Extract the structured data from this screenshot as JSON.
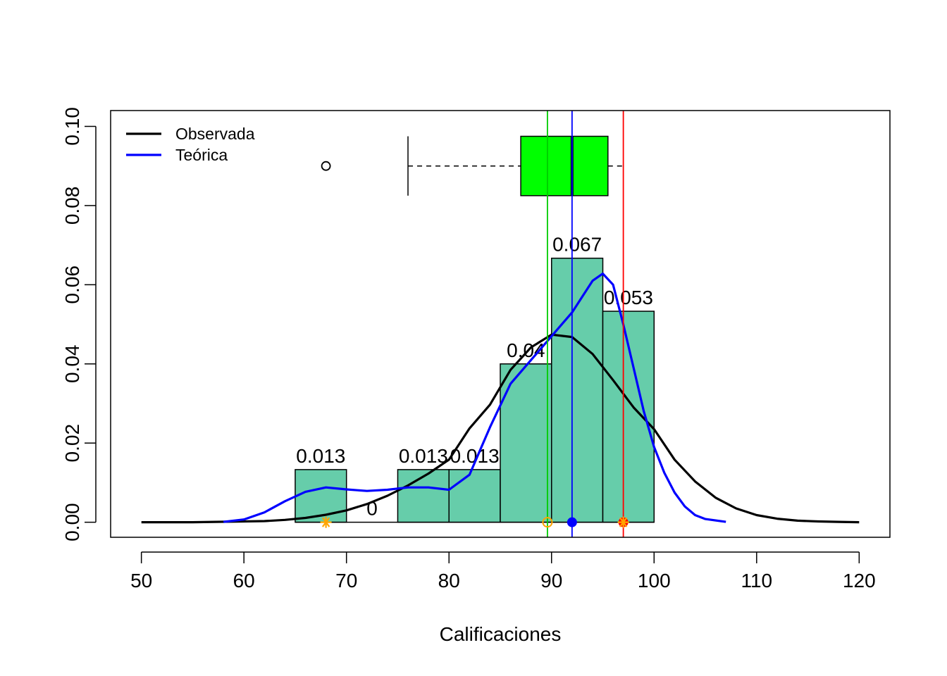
{
  "chart_data": {
    "type": "bar",
    "xlabel": "Calificaciones",
    "ylabel": "",
    "title": "",
    "xlim": [
      47,
      123
    ],
    "ylim": [
      -0.0038,
      0.104
    ],
    "x_ticks": [
      "50",
      "60",
      "70",
      "80",
      "90",
      "100",
      "110",
      "120"
    ],
    "y_ticks": [
      "0.00",
      "0.02",
      "0.04",
      "0.06",
      "0.08",
      "0.10"
    ],
    "histogram": {
      "bins": [
        {
          "from": 65,
          "to": 70,
          "density": 0.0133,
          "label": "0.013"
        },
        {
          "from": 70,
          "to": 75,
          "density": 0.0,
          "label": "0"
        },
        {
          "from": 75,
          "to": 80,
          "density": 0.0133,
          "label": "0.013"
        },
        {
          "from": 80,
          "to": 85,
          "density": 0.0133,
          "label": "0.013"
        },
        {
          "from": 85,
          "to": 90,
          "density": 0.04,
          "label": "0.04"
        },
        {
          "from": 90,
          "to": 95,
          "density": 0.0667,
          "label": "0.067"
        },
        {
          "from": 95,
          "to": 100,
          "density": 0.0533,
          "label": "0.053"
        }
      ],
      "fill": "#66cdaa"
    },
    "series": [
      {
        "name": "Observada",
        "color": "#000000",
        "x": [
          50,
          55,
          60,
          62,
          64,
          66,
          68,
          70,
          72,
          74,
          76,
          78,
          80,
          82,
          84,
          86,
          88,
          90,
          92,
          94,
          96,
          98,
          100,
          102,
          104,
          106,
          108,
          110,
          112,
          114,
          116,
          118,
          120
        ],
        "y": [
          0.0,
          0.0,
          0.0002,
          0.0003,
          0.0006,
          0.0011,
          0.0019,
          0.003,
          0.0046,
          0.0067,
          0.0093,
          0.0123,
          0.0158,
          0.0237,
          0.0297,
          0.0385,
          0.0442,
          0.0474,
          0.0468,
          0.0425,
          0.0359,
          0.029,
          0.0235,
          0.0158,
          0.0103,
          0.0062,
          0.0035,
          0.0018,
          0.0009,
          0.0004,
          0.0002,
          0.0001,
          0.0
        ]
      },
      {
        "name": "Teórica",
        "color": "#0000ff",
        "x": [
          58,
          60,
          62,
          64,
          66,
          68,
          70,
          72,
          74,
          76,
          78,
          80,
          82,
          84,
          86,
          88,
          90,
          91,
          92,
          93,
          94,
          95,
          96,
          97,
          98,
          99,
          100,
          101,
          102,
          103,
          104,
          105,
          107
        ],
        "y": [
          0.0001,
          0.0007,
          0.0025,
          0.0053,
          0.0077,
          0.0088,
          0.0083,
          0.0079,
          0.0082,
          0.0088,
          0.0088,
          0.0082,
          0.012,
          0.024,
          0.035,
          0.041,
          0.047,
          0.05,
          0.053,
          0.057,
          0.061,
          0.0628,
          0.06,
          0.05,
          0.039,
          0.028,
          0.019,
          0.0125,
          0.0075,
          0.004,
          0.0018,
          0.0008,
          0.0001
        ]
      }
    ],
    "boxplot": {
      "y": 0.09,
      "min": 76,
      "q1": 87,
      "median": 92,
      "q3": 95.5,
      "max": 97,
      "outliers": [
        68
      ],
      "fill": "#00ff00"
    },
    "vlines": [
      {
        "x": 89.6,
        "color": "#00cc00"
      },
      {
        "x": 92,
        "color": "#0000ff"
      },
      {
        "x": 97,
        "color": "#ff0000"
      }
    ],
    "points": [
      {
        "x": 68,
        "shape": "asterisk",
        "color": "#ffa500"
      },
      {
        "x": 89.6,
        "shape": "circle-open",
        "color": "#ffa500"
      },
      {
        "x": 92,
        "shape": "circle-filled",
        "color": "#0000ff"
      },
      {
        "x": 97,
        "shape": "circle-filled",
        "color": "#ff0000"
      },
      {
        "x": 97,
        "shape": "asterisk",
        "color": "#ffa500"
      }
    ],
    "legend": {
      "position": "top-left",
      "entries": [
        {
          "label": "Observada",
          "color": "#000000"
        },
        {
          "label": "Teórica",
          "color": "#0000ff"
        }
      ]
    },
    "grid": false
  }
}
